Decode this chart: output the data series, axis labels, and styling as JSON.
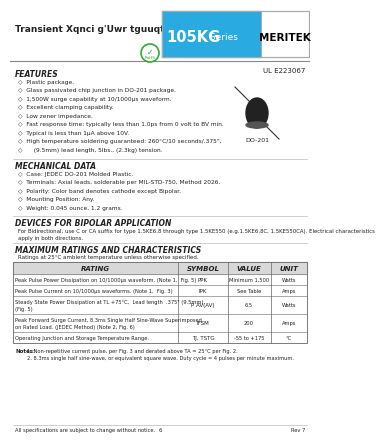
{
  "title_left": "Transient Xqnci g'Uwr tguuqtu",
  "series_name": "105KG",
  "series_suffix": " Series",
  "brand": "MERITEK",
  "header_bg": "#29aae1",
  "header_text_color": "#ffffff",
  "brand_text_color": "#000000",
  "ul_number": "UL E223067",
  "features_title": "FEATURES",
  "features": [
    "Plastic package.",
    "Glass passivated chip junction in DO-201 package.",
    "1,500W surge capability at 10/1000μs waveform.",
    "Excellent clamping capability.",
    "Low zener impedance.",
    "Fast response time: typically less than 1.0ps from 0 volt to BV min.",
    "Typical is less than 1μA above 10V.",
    "High temperature soldering guaranteed: 260°C/10 seconds/.375\",",
    "    (9.5mm) lead length, 5lbs., (2.3kg) tension."
  ],
  "mech_title": "MECHANICAL DATA",
  "mech_items": [
    "Case: JEDEC DO-201 Molded Plastic.",
    "Terminals: Axial leads, solderable per MIL-STD-750, Method 2026.",
    "Polarity: Color band denotes cathode except Bipolar.",
    "Mounting Position: Any.",
    "Weight: 0.045 ounce, 1.2 grams."
  ],
  "bipolar_title": "DEVICES FOR BIPOLAR APPLICATION",
  "bipolar_text1": "For Bidirectional, use C or CA suffix for type 1.5KE6.8 through type 1.5KE550 (e.g.1.5KE6.8C, 1.5KE550CA). Electrical characteristics",
  "bipolar_text2": "apply in both directions.",
  "ratings_title": "MAXIMUM RATINGS AND CHARACTERISTICS",
  "ratings_note": "Ratings at 25°C ambient temperature unless otherwise specified.",
  "table_headers": [
    "RATING",
    "SYMBOL",
    "VALUE",
    "UNIT"
  ],
  "table_rows": [
    [
      "Peak Pulse Power Dissipation on 10/1000μs waveform. (Note 1,  Fig. 5)",
      "PPK",
      "Minimum 1,500",
      "Watts"
    ],
    [
      "Peak Pulse Current on 10/1000μs waveforms. (Note 1,  Fig. 3)",
      "IPK",
      "See Table",
      "Amps"
    ],
    [
      "Steady State Power Dissipation at TL +75°C,  Lead length  .375\" (9.5mm).\n(Fig. 5)",
      "P AV(AV)",
      "6.5",
      "Watts"
    ],
    [
      "Peak Forward Surge Current, 8.3ms Single Half Sine-Wave Superimposed\non Rated Load. (JEDEC Method) (Note 2, Fig. 6)",
      "IFSM",
      "200",
      "Amps"
    ],
    [
      "Operating Junction and Storage Temperature Range.",
      "TJ, TSTG",
      "-55 to +175",
      "°C"
    ]
  ],
  "notes_label": "Notes:",
  "notes": [
    "1. Non-repetitive current pulse, per Fig. 3 and derated above TA = 25°C per Fig. 2.",
    "2. 8.3ms single half sine-wave, or equivalent square wave. Duty cycle = 4 pulses per minute maximum."
  ],
  "footer_left": "All specifications are subject to change without notice.",
  "footer_center": "6",
  "footer_right": "Rev 7",
  "page_bg": "#ffffff",
  "table_header_bg": "#d8d8d8",
  "text_color": "#222222",
  "separator_color": "#888888",
  "table_border_color": "#666666"
}
